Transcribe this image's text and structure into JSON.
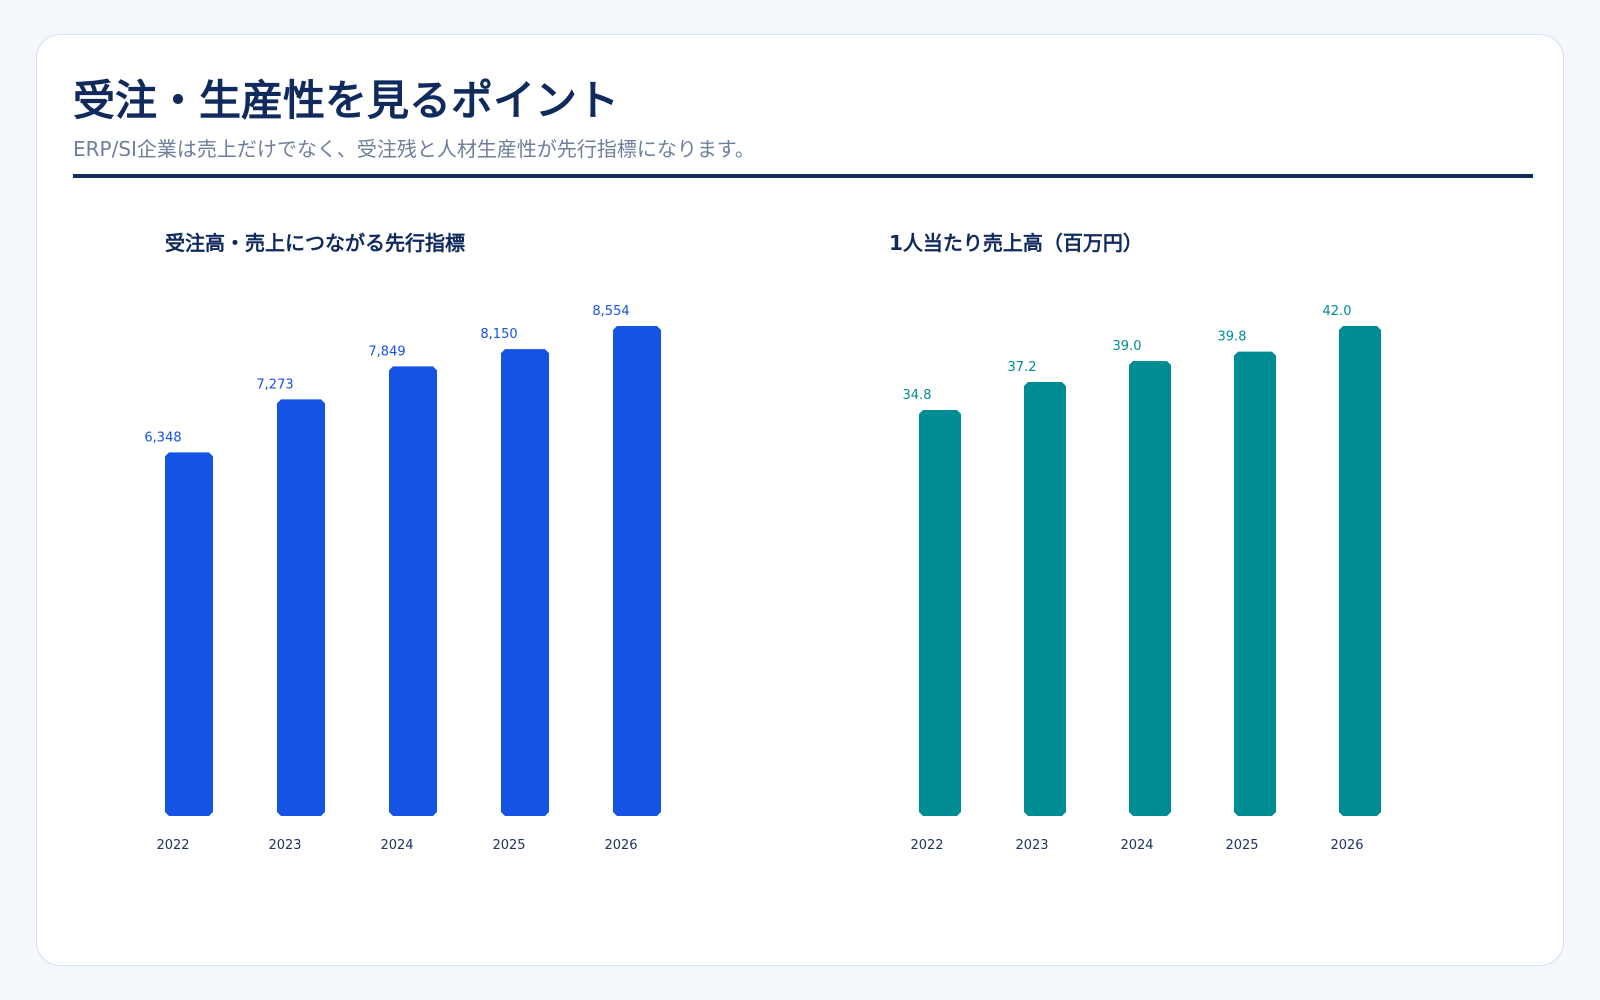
{
  "header": {
    "title": "受注・生産性を見るポイント",
    "subtitle": "ERP/SI企業は売上だけでなく、受注残と人材生産性が先行指標になります。"
  },
  "colors": {
    "navy": "#112a5e",
    "orders_bar": "#1553e5",
    "productivity_bar": "#008c93"
  },
  "chart_data": [
    {
      "type": "bar",
      "title": "受注高・売上につながる先行指標",
      "xlabel": "",
      "ylabel": "",
      "categories": [
        "2022",
        "2023",
        "2024",
        "2025",
        "2026"
      ],
      "values": [
        6348,
        7273,
        7849,
        8150,
        8554
      ],
      "value_labels": [
        "6,348",
        "7,273",
        "7,849",
        "8,150",
        "8,554"
      ],
      "color": "#1553e5",
      "ylim": [
        0,
        8554
      ],
      "grid": false,
      "legend": "none"
    },
    {
      "type": "bar",
      "title": "1人当たり売上高（百万円）",
      "xlabel": "",
      "ylabel": "",
      "categories": [
        "2022",
        "2023",
        "2024",
        "2025",
        "2026"
      ],
      "values": [
        34.8,
        37.2,
        39.0,
        39.8,
        42.0
      ],
      "value_labels": [
        "34.8",
        "37.2",
        "39.0",
        "39.8",
        "42.0"
      ],
      "color": "#008c93",
      "ylim": [
        0,
        42.0
      ],
      "grid": false,
      "legend": "none"
    }
  ]
}
